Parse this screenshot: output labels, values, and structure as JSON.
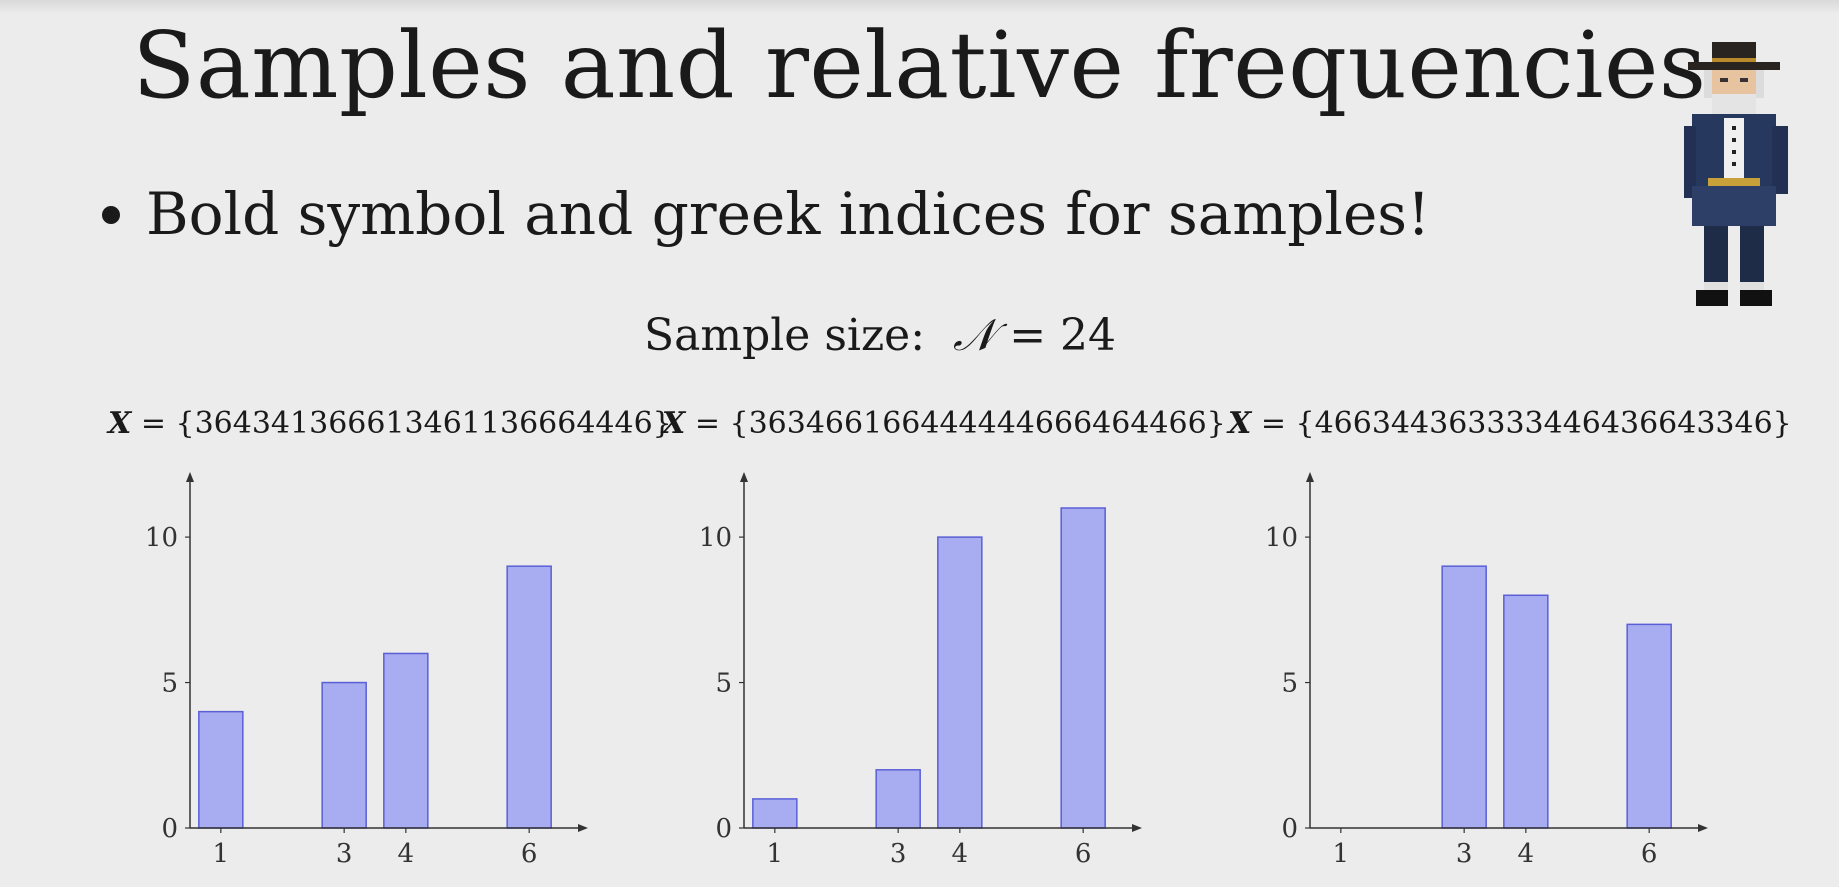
{
  "title": "Samples and relative frequencies",
  "bullet": "Bold symbol and greek indices for samples!",
  "sample_size": {
    "label": "Sample size:",
    "symbol": "𝒩",
    "equals": "= 24"
  },
  "avatar_icon": "pixel-art-old-man-icon",
  "colors": {
    "bar_fill": "#a8acf0",
    "bar_stroke": "#5a5fd6",
    "axis": "#333333",
    "background": "#ececec"
  },
  "chart_data": [
    {
      "type": "bar",
      "sample_symbol": "X",
      "sample_text": "= {364341366613461136664446}",
      "categories": [
        1,
        3,
        4,
        6
      ],
      "values": [
        4,
        5,
        6,
        9
      ],
      "x_ticks": [
        1,
        3,
        4,
        6
      ],
      "y_ticks": [
        0,
        5,
        10
      ],
      "xlim": [
        0.5,
        6.5
      ],
      "ylim": [
        0,
        11
      ],
      "title": "",
      "xlabel": "",
      "ylabel": ""
    },
    {
      "type": "bar",
      "sample_symbol": "X",
      "sample_text": "= {363466166444444666464466}",
      "categories": [
        1,
        3,
        4,
        6
      ],
      "values": [
        1,
        2,
        10,
        11
      ],
      "x_ticks": [
        1,
        3,
        4,
        6
      ],
      "y_ticks": [
        0,
        5,
        10
      ],
      "xlim": [
        0.5,
        6.5
      ],
      "ylim": [
        0,
        11
      ],
      "title": "",
      "xlabel": "",
      "ylabel": ""
    },
    {
      "type": "bar",
      "sample_symbol": "X",
      "sample_text": "= {466344363333446436643346}",
      "categories": [
        3,
        4,
        6
      ],
      "values": [
        9,
        8,
        7
      ],
      "x_ticks": [
        1,
        3,
        4,
        6
      ],
      "y_ticks": [
        0,
        5,
        10
      ],
      "xlim": [
        0.5,
        6.5
      ],
      "ylim": [
        0,
        11
      ],
      "title": "",
      "xlabel": "",
      "ylabel": ""
    }
  ]
}
